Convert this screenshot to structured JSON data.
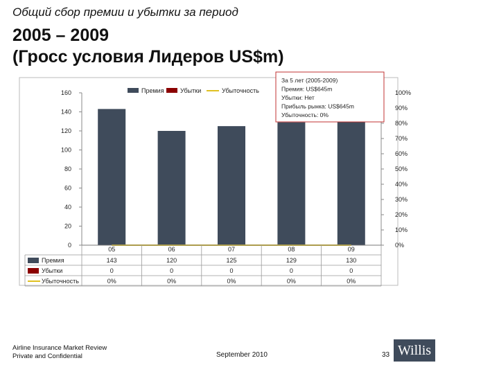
{
  "header": {
    "subtitle": "Общий сбор премии и убытки за период",
    "title_line1": "2005 – 2009",
    "title_line2": "(Гросс условия Лидеров US$m)"
  },
  "callout": {
    "lines": [
      "За 5 лет (2005-2009)",
      "Премия: US$645m",
      "Убытки: Нет",
      "Прибыль рынка: US$645m",
      "Убыточность: 0%"
    ]
  },
  "footer": {
    "line1": "Airline Insurance Market Review",
    "line2": "Private and Confidential",
    "date": "September 2010",
    "page": "33",
    "logo": "Willis"
  },
  "colors": {
    "bars": "#3f4b5b",
    "loss": "#8b0000",
    "ratio": "#e0c020",
    "callout_border": "#c03030"
  },
  "chart_data": {
    "type": "bar",
    "categories": [
      "05",
      "06",
      "07",
      "08",
      "09"
    ],
    "series": [
      {
        "name": "Премия",
        "values": [
          143,
          120,
          125,
          129,
          130
        ],
        "axis": "left",
        "display": [
          "143",
          "120",
          "125",
          "129",
          "130"
        ]
      },
      {
        "name": "Убытки",
        "values": [
          0,
          0,
          0,
          0,
          0
        ],
        "axis": "left",
        "display": [
          "0",
          "0",
          "0",
          "0",
          "0"
        ]
      },
      {
        "name": "Убыточность",
        "type": "line",
        "values": [
          0,
          0,
          0,
          0,
          0
        ],
        "axis": "right",
        "display": [
          "0%",
          "0%",
          "0%",
          "0%",
          "0%"
        ]
      }
    ],
    "y_left": {
      "min": 0,
      "max": 160,
      "ticks": [
        "0",
        "20",
        "40",
        "60",
        "80",
        "100",
        "120",
        "140",
        "160"
      ]
    },
    "y_right": {
      "min": 0,
      "max": 100,
      "ticks": [
        "0%",
        "10%",
        "20%",
        "30%",
        "40%",
        "50%",
        "60%",
        "70%",
        "80%",
        "90%",
        "100%"
      ]
    },
    "legend_position": "top",
    "data_table": true,
    "grid": false
  }
}
